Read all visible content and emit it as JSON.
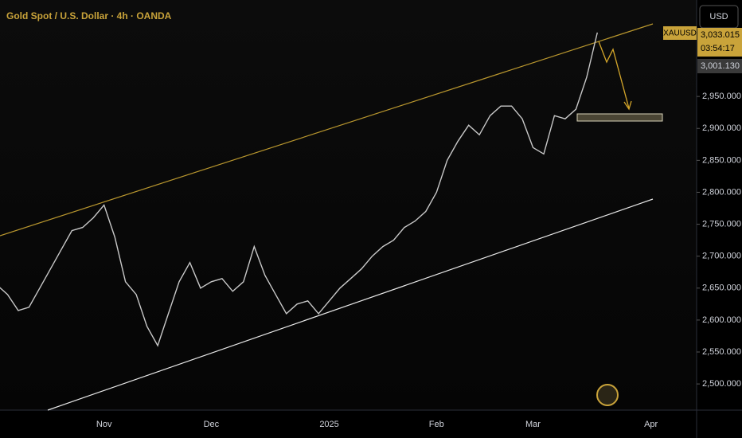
{
  "chart_data": {
    "type": "line",
    "title": "Gold Spot / U.S. Dollar · 4h · OANDA",
    "currency": "USD",
    "symbol": "XAUUSD",
    "price_labels": [
      "3,033.015",
      "03:54:17",
      "3,001.130"
    ],
    "categories": [
      null,
      null,
      null,
      null,
      null,
      null,
      null,
      null,
      null,
      null,
      "Nov",
      null,
      null,
      null,
      null,
      null,
      null,
      null,
      null,
      null,
      "Dec",
      null,
      null,
      null,
      null,
      null,
      null,
      null,
      null,
      null,
      null,
      "2025",
      null,
      null,
      null,
      null,
      null,
      null,
      null,
      null,
      null,
      "Feb",
      null,
      null,
      null,
      null,
      null,
      null,
      null,
      null,
      "Mar",
      null,
      null,
      null,
      null,
      null,
      null,
      null,
      null,
      null,
      null,
      "Apr"
    ],
    "series": [
      {
        "name": "XAUUSD",
        "color": "#c8c8c8",
        "values": [
          2655,
          2640,
          2615,
          2620,
          2650,
          2680,
          2710,
          2740,
          2745,
          2760,
          2780,
          2730,
          2660,
          2640,
          2590,
          2560,
          2610,
          2660,
          2690,
          2650,
          2660,
          2665,
          2645,
          2660,
          2715,
          2670,
          2640,
          2610,
          2625,
          2630,
          2610,
          2630,
          2650,
          2665,
          2680,
          2700,
          2715,
          2725,
          2745,
          2755,
          2770,
          2800,
          2850,
          2880,
          2905,
          2890,
          2920,
          2935,
          2935,
          2915,
          2870,
          2860,
          2920,
          2915,
          2930,
          2980,
          3050,
          null,
          null,
          null,
          null,
          null
        ]
      }
    ],
    "ylim": [
      2459,
      3101
    ],
    "yticks": [
      {
        "value": 2500,
        "label": "2,500.000"
      },
      {
        "value": 2550,
        "label": "2,550.000"
      },
      {
        "value": 2600,
        "label": "2,600.000"
      },
      {
        "value": 2650,
        "label": "2,650.000"
      },
      {
        "value": 2700,
        "label": "2,700.000"
      },
      {
        "value": 2750,
        "label": "2,750.000"
      },
      {
        "value": 2800,
        "label": "2,800.000"
      },
      {
        "value": 2850,
        "label": "2,850.000"
      },
      {
        "value": 2900,
        "label": "2,900.000"
      },
      {
        "value": 2950,
        "label": "2,950.000"
      }
    ],
    "grid": false
  }
}
